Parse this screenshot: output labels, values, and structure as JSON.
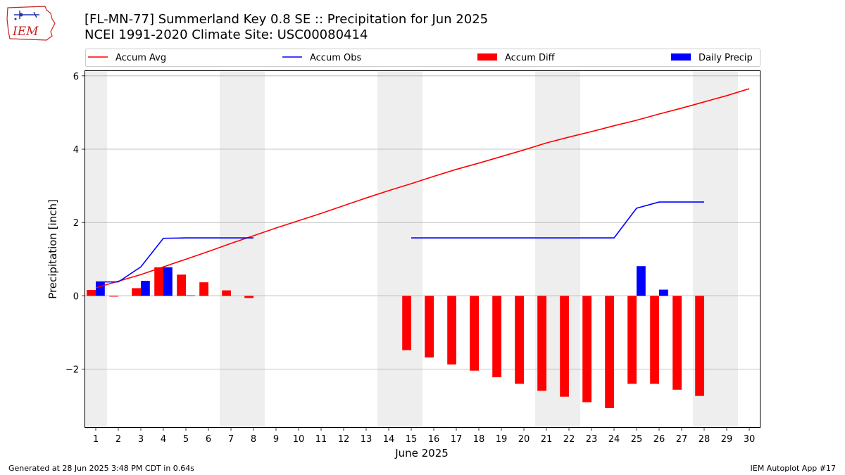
{
  "logo_text": "IEM",
  "title_line1": "[FL-MN-77] Summerland Key 0.8 SE :: Precipitation for Jun 2025",
  "title_line2": "NCEI 1991-2020 Climate Site: USC00080414",
  "footer_left": "Generated at 28 Jun 2025 3:48 PM CDT in 0.64s",
  "footer_right": "IEM Autoplot App #17",
  "colors": {
    "avg": "#ff0000",
    "obs": "#0000ff",
    "diff": "#ff0000",
    "daily": "#0000ff",
    "weekend": "#eeeeee",
    "grid": "#b0b0b0"
  },
  "chart_data": {
    "type": "bar",
    "xlabel": "June 2025",
    "ylabel": "Precipitation [inch]",
    "xlim": [
      0.5,
      30.5
    ],
    "ylim": [
      -3.6,
      6.15
    ],
    "x_ticks": [
      1,
      2,
      3,
      4,
      5,
      6,
      7,
      8,
      9,
      10,
      11,
      12,
      13,
      14,
      15,
      16,
      17,
      18,
      19,
      20,
      21,
      22,
      23,
      24,
      25,
      26,
      27,
      28,
      29,
      30
    ],
    "y_ticks": [
      -2,
      0,
      2,
      4,
      6
    ],
    "y_tick_labels": [
      "−2",
      "0",
      "2",
      "4",
      "6"
    ],
    "grid": "y",
    "legend_position": "top",
    "legend": [
      "Accum Avg",
      "Accum Obs",
      "Accum Diff",
      "Daily Precip"
    ],
    "weekend_days": [
      1,
      7,
      8,
      14,
      15,
      21,
      22,
      28,
      29
    ],
    "series": [
      {
        "name": "Accum Avg",
        "kind": "line",
        "x": [
          1,
          2,
          3,
          4,
          5,
          6,
          7,
          8,
          9,
          10,
          11,
          12,
          13,
          14,
          15,
          16,
          17,
          18,
          19,
          20,
          21,
          22,
          23,
          24,
          25,
          26,
          27,
          28,
          29,
          30
        ],
        "values": [
          0.22,
          0.4,
          0.58,
          0.79,
          1.0,
          1.21,
          1.43,
          1.64,
          1.85,
          2.05,
          2.25,
          2.46,
          2.67,
          2.87,
          3.06,
          3.26,
          3.45,
          3.62,
          3.8,
          3.98,
          4.17,
          4.33,
          4.48,
          4.64,
          4.79,
          4.96,
          5.12,
          5.29,
          5.46,
          5.65
        ]
      },
      {
        "name": "Accum Obs",
        "kind": "line",
        "segments": [
          {
            "x": [
              1,
              2,
              3,
              4,
              5,
              6,
              7,
              8
            ],
            "values": [
              0.38,
              0.38,
              0.79,
              1.57,
              1.58,
              1.58,
              1.58,
              1.58
            ]
          },
          {
            "x": [
              15,
              16,
              17,
              18,
              19,
              20,
              21,
              22,
              23,
              24,
              25,
              26,
              27,
              28
            ],
            "values": [
              1.58,
              1.58,
              1.58,
              1.58,
              1.58,
              1.58,
              1.58,
              1.58,
              1.58,
              1.58,
              2.39,
              2.56,
              2.56,
              2.56
            ]
          }
        ]
      },
      {
        "name": "Accum Diff",
        "kind": "bar",
        "x": [
          1,
          2,
          3,
          4,
          5,
          6,
          7,
          8,
          15,
          16,
          17,
          18,
          19,
          20,
          21,
          22,
          23,
          24,
          25,
          26,
          27,
          28
        ],
        "values": [
          0.16,
          -0.02,
          0.21,
          0.78,
          0.58,
          0.37,
          0.15,
          -0.06,
          -1.48,
          -1.68,
          -1.87,
          -2.04,
          -2.22,
          -2.4,
          -2.59,
          -2.75,
          -2.9,
          -3.06,
          -2.4,
          -2.4,
          -2.56,
          -2.73
        ]
      },
      {
        "name": "Daily Precip",
        "kind": "bar",
        "x": [
          1,
          3,
          4,
          5,
          25,
          26
        ],
        "values": [
          0.38,
          0.41,
          0.78,
          0.01,
          0.81,
          0.17
        ]
      }
    ]
  }
}
